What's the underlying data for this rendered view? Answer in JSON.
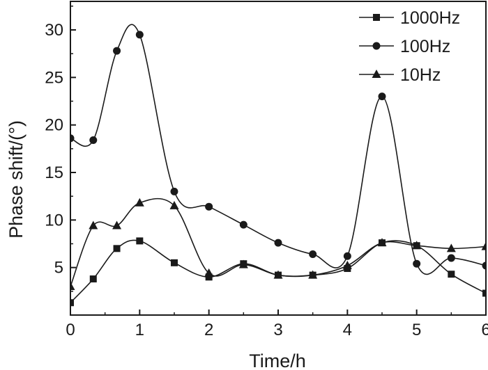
{
  "chart_data": {
    "type": "line",
    "title": "",
    "xlabel": "Time/h",
    "ylabel": "Phase shift/(°)",
    "xlim": [
      0,
      6
    ],
    "ylim": [
      0,
      33
    ],
    "x_ticks": [
      "0",
      "1",
      "2",
      "3",
      "4",
      "5",
      "6"
    ],
    "y_ticks": [
      "5",
      "10",
      "15",
      "20",
      "25",
      "30"
    ],
    "grid": false,
    "legend_position": "top-right",
    "series": [
      {
        "name": "1000Hz",
        "marker": "square",
        "color": "#1a1a1a",
        "x": [
          0,
          0.33,
          0.67,
          1,
          1.5,
          2,
          2.5,
          3,
          3.5,
          4,
          4.5,
          5,
          5.5,
          6
        ],
        "y": [
          1.3,
          3.8,
          7.0,
          7.8,
          5.5,
          4.0,
          5.4,
          4.2,
          4.2,
          4.9,
          7.6,
          7.3,
          4.3,
          2.3
        ]
      },
      {
        "name": "100Hz",
        "marker": "circle",
        "color": "#1a1a1a",
        "x": [
          0,
          0.33,
          0.67,
          1,
          1.5,
          2,
          2.5,
          3,
          3.5,
          4,
          4.5,
          5,
          5.5,
          6
        ],
        "y": [
          18.6,
          18.4,
          27.8,
          29.5,
          13.0,
          11.4,
          9.5,
          7.6,
          6.4,
          6.2,
          23.0,
          5.4,
          6.0,
          5.2
        ]
      },
      {
        "name": "10Hz",
        "marker": "triangle",
        "color": "#1a1a1a",
        "x": [
          0,
          0.33,
          0.67,
          1,
          1.5,
          2,
          2.5,
          3,
          3.5,
          4,
          4.5,
          5,
          5.5,
          6
        ],
        "y": [
          3.0,
          9.4,
          9.4,
          11.8,
          11.5,
          4.4,
          5.3,
          4.2,
          4.2,
          5.2,
          7.6,
          7.3,
          7.0,
          7.2
        ]
      }
    ]
  }
}
